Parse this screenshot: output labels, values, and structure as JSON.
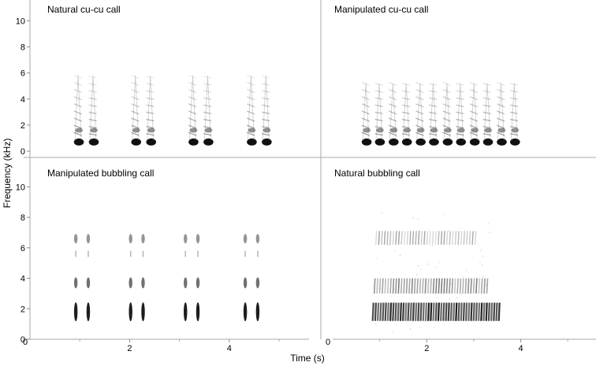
{
  "chart_data": {
    "type": "spectrogram",
    "shared_xlabel": "Time (s)",
    "shared_ylabel": "Frequency (kHz)",
    "panels": [
      {
        "title": "Natural cu-cu call",
        "position": "top-left",
        "xlim": [
          0,
          5.6
        ],
        "ylim": [
          0,
          11
        ],
        "yticks": [
          0,
          2,
          4,
          6,
          8,
          10
        ],
        "xticks": [],
        "kind": "cucu",
        "call_starts_s": [
          0.95,
          2.1,
          3.25,
          4.42
        ],
        "elements": [
          "cu",
          "cu"
        ],
        "element_offset_s": 0.3,
        "max_freq_khz": 5.8,
        "fundamental_khz": 0.7
      },
      {
        "title": "Manipulated cu-cu call",
        "position": "top-right",
        "xlim": [
          0,
          5.6
        ],
        "ylim": [
          0,
          11
        ],
        "yticks": [],
        "xticks": [],
        "kind": "cucu",
        "call_starts_s": [
          0.9,
          1.45,
          2.0,
          2.55,
          3.1,
          3.65
        ],
        "elements": [
          "cu",
          "cu"
        ],
        "element_offset_s": 0.27,
        "max_freq_khz": 5.2,
        "fundamental_khz": 0.7
      },
      {
        "title": "Manipulated bubbling call",
        "position": "bottom-left",
        "xlim": [
          0,
          5.6
        ],
        "ylim": [
          0,
          11
        ],
        "yticks": [
          0,
          2,
          4,
          6,
          8,
          10
        ],
        "xticks": [
          0,
          2,
          4
        ],
        "kind": "pulses",
        "pulse_times_s": [
          0.92,
          1.17,
          2.02,
          2.27,
          3.12,
          3.37,
          4.32,
          4.57
        ],
        "harmonics_khz": [
          1.8,
          3.7,
          6.6
        ],
        "tick_offset_s": 1.0
      },
      {
        "title": "Natural bubbling call",
        "position": "bottom-right",
        "xlim": [
          0,
          5.6
        ],
        "ylim": [
          0,
          11
        ],
        "yticks": [],
        "xticks": [
          0,
          2,
          4
        ],
        "kind": "bubbling",
        "start_s": 0.85,
        "end_s": 3.4,
        "bands_khz": [
          1.8,
          3.5,
          6.6
        ],
        "tick_offset_s": 1.0
      }
    ]
  }
}
